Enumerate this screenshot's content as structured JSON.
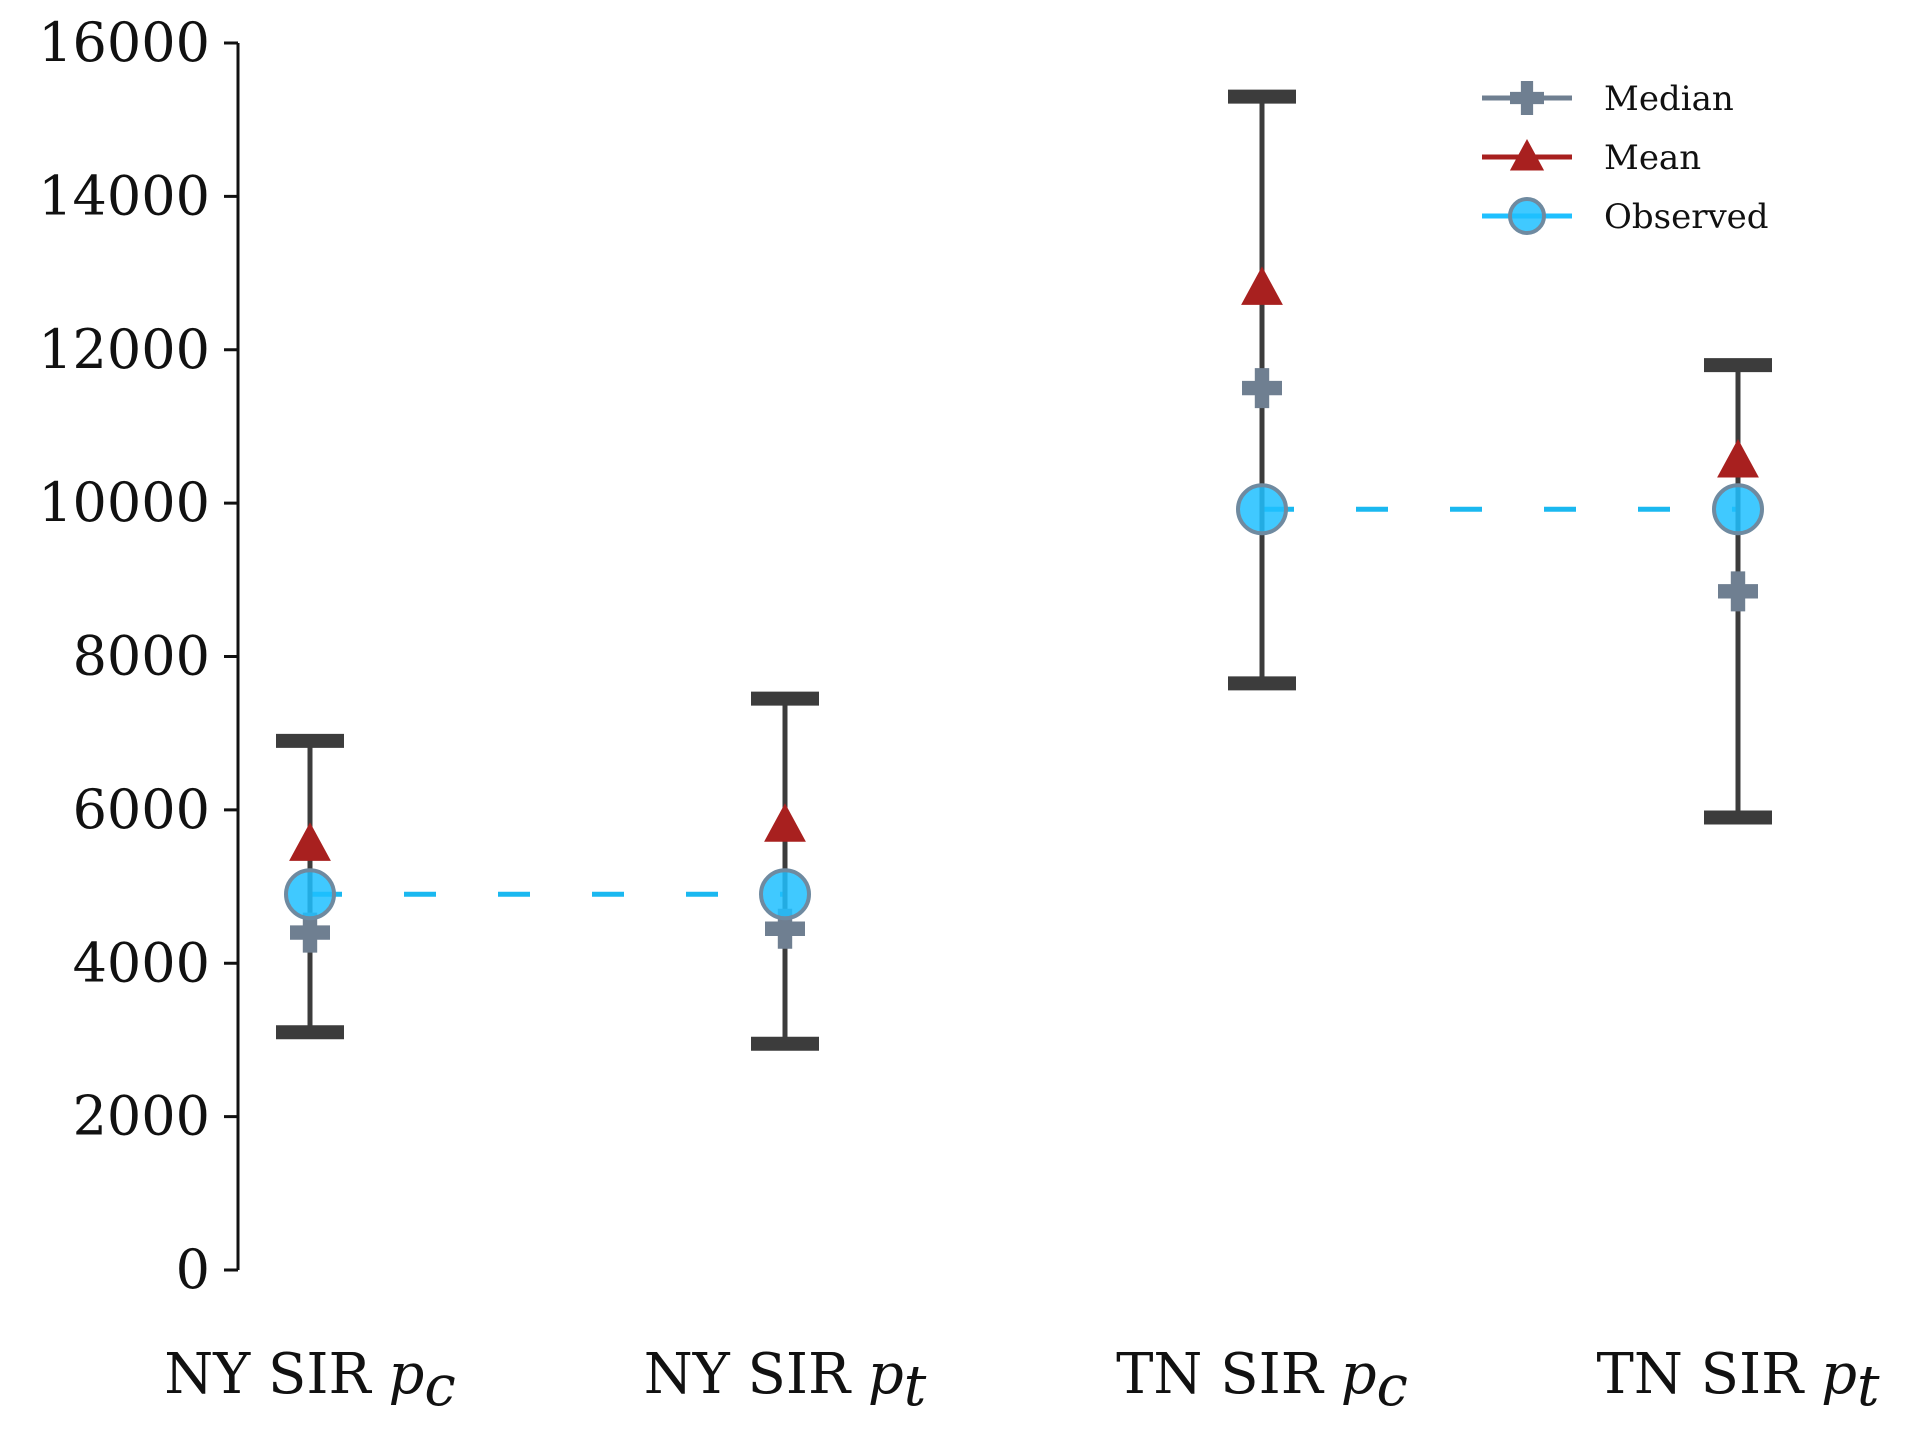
{
  "chart_data": {
    "type": "scatter",
    "title": "",
    "xlabel": "",
    "ylabel": "",
    "ylim": [
      0,
      16000
    ],
    "yticks": [
      0,
      2000,
      4000,
      6000,
      8000,
      10000,
      12000,
      14000,
      16000
    ],
    "grid": false,
    "legend_position": "top-right",
    "categories": [
      {
        "base": "NY SIR ",
        "sub": "p",
        "subscript": "c"
      },
      {
        "base": "NY SIR ",
        "sub": "p",
        "subscript": "t"
      },
      {
        "base": "TN SIR ",
        "sub": "p",
        "subscript": "c"
      },
      {
        "base": "TN SIR ",
        "sub": "p",
        "subscript": "t"
      }
    ],
    "error_bars": {
      "lower": [
        3100,
        2950,
        7650,
        5900
      ],
      "upper": [
        6900,
        7450,
        15300,
        11800
      ],
      "color": "#3c3c3c"
    },
    "series": [
      {
        "name": "Median",
        "marker": "plus",
        "color": "#6f7f91",
        "values": [
          4400,
          4450,
          11500,
          8850
        ]
      },
      {
        "name": "Mean",
        "marker": "triangle",
        "color": "#a8201f",
        "values": [
          5550,
          5800,
          12800,
          10550
        ]
      },
      {
        "name": "Observed",
        "marker": "circle",
        "color": "#1fc0ff",
        "values": [
          4900,
          4900,
          9920,
          9920
        ]
      }
    ],
    "observed_links": [
      [
        0,
        1
      ],
      [
        2,
        3
      ]
    ],
    "link_color": "#1ab8f0"
  }
}
